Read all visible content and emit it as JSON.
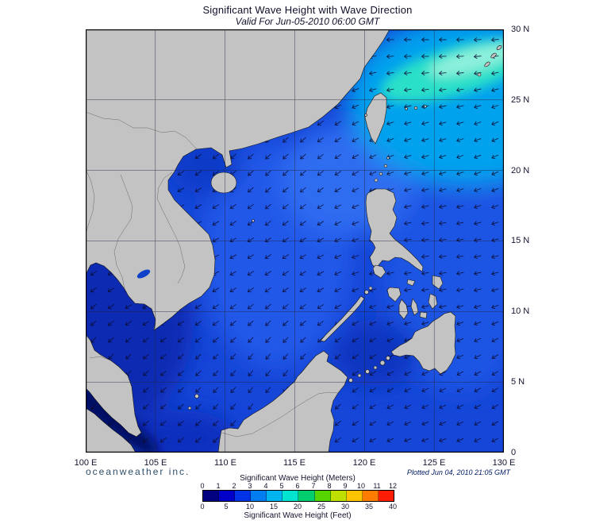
{
  "header": {
    "title": "Significant Wave Height with Wave Direction",
    "subtitle": "Valid For Jun-05-2010 06:00 GMT"
  },
  "footer": {
    "branding": "oceanweather inc.",
    "plotted": "Plotted Jun 04, 2010 21:05 GMT"
  },
  "axes": {
    "lon": [
      "100 E",
      "105 E",
      "110 E",
      "115 E",
      "120 E",
      "125 E",
      "130 E"
    ],
    "lat": [
      "30 N",
      "25 N",
      "20 N",
      "15 N",
      "10 N",
      "5 N",
      "0"
    ]
  },
  "legend": {
    "meters_title": "Significant Wave Height (Meters)",
    "feet_title": "Significant Wave Height (Feet)",
    "meters_ticks": [
      "0",
      "1",
      "2",
      "3",
      "4",
      "5",
      "6",
      "7",
      "8",
      "9",
      "10",
      "11",
      "12"
    ],
    "feet_ticks": [
      "0",
      "5",
      "10",
      "15",
      "20",
      "25",
      "30",
      "35",
      "40"
    ],
    "colors": [
      "#000080",
      "#0000c8",
      "#0032e6",
      "#007df0",
      "#00b4f0",
      "#00e4d0",
      "#00cd6e",
      "#55d400",
      "#bfdf00",
      "#ffc300",
      "#ff7c00",
      "#ff1c00"
    ]
  },
  "map": {
    "land_color": "#c3c3c3",
    "coast_color": "#151515",
    "ocean_base": "#1546d8",
    "arrow_color": "#0c0c30"
  }
}
